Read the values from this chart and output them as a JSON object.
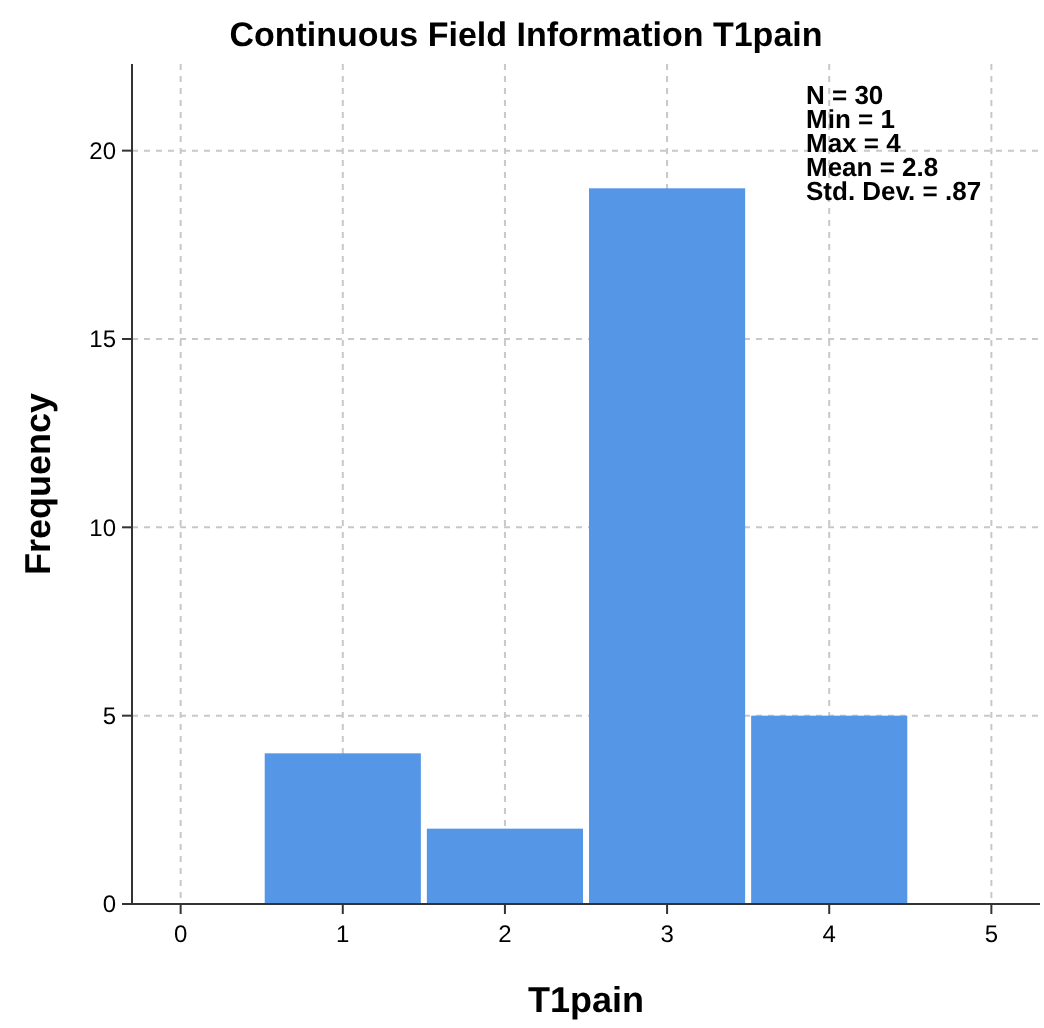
{
  "chart_data": {
    "type": "histogram",
    "title": "Continuous Field Information T1pain",
    "xlabel": "T1pain",
    "ylabel": "Frequency",
    "bins": [
      0.5,
      1.5,
      2.5,
      3.5,
      4.5
    ],
    "values": [
      4,
      2,
      19,
      5
    ],
    "color": "#5596e6",
    "xlim": [
      -0.3,
      5.3
    ],
    "xticks": [
      0,
      1,
      2,
      3,
      4,
      5
    ],
    "ylim": [
      0,
      22.3
    ],
    "yticks": [
      0,
      5,
      10,
      15,
      20
    ],
    "grid": true,
    "annotations": [
      "N = 30",
      "Min = 1",
      "Max = 4",
      "Mean = 2.8",
      "Std. Dev. = .87"
    ]
  }
}
